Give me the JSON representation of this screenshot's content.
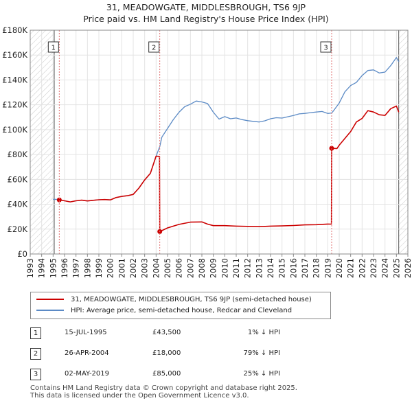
{
  "chart_data": {
    "type": "line",
    "title": "31, MEADOWGATE, MIDDLESBROUGH, TS6 9JP",
    "subtitle": "Price paid vs. HM Land Registry's House Price Index (HPI)",
    "x_ticks": [
      "1993",
      "1994",
      "1995",
      "1996",
      "1997",
      "1998",
      "1999",
      "2000",
      "2001",
      "2002",
      "2003",
      "2004",
      "2005",
      "2006",
      "2007",
      "2008",
      "2009",
      "2010",
      "2011",
      "2012",
      "2013",
      "2014",
      "2015",
      "2016",
      "2017",
      "2018",
      "2019",
      "2020",
      "2021",
      "2022",
      "2023",
      "2024",
      "2025",
      "2026"
    ],
    "y_ticks": [
      "£0",
      "£20K",
      "£40K",
      "£60K",
      "£80K",
      "£100K",
      "£120K",
      "£140K",
      "£160K",
      "£180K"
    ],
    "xlim": [
      1993,
      2026
    ],
    "ylim": [
      0,
      180000
    ],
    "grid": true,
    "series": [
      {
        "name": "31, MEADOWGATE, MIDDLESBROUGH, TS6 9JP (semi-detached house)",
        "color": "#cc0000",
        "x": [
          1995.54,
          1996.0,
          1996.5,
          1997.0,
          1997.5,
          1998.0,
          1998.5,
          1999.0,
          1999.5,
          2000.0,
          2000.5,
          2001.0,
          2001.5,
          2002.0,
          2002.5,
          2003.0,
          2003.5,
          2004.0,
          2004.3,
          2004.32,
          2005.0,
          2006.0,
          2007.0,
          2008.0,
          2008.5,
          2009.0,
          2010.0,
          2011.0,
          2012.0,
          2013.0,
          2014.0,
          2015.0,
          2016.0,
          2017.0,
          2018.0,
          2019.0,
          2019.32,
          2019.34,
          2019.8,
          2020.0,
          2020.5,
          2021.0,
          2021.5,
          2022.0,
          2022.5,
          2023.0,
          2023.5,
          2024.0,
          2024.5,
          2025.0,
          2025.2
        ],
        "values": [
          43500,
          42800,
          41900,
          42800,
          43300,
          42700,
          43200,
          43600,
          43800,
          43500,
          45400,
          46300,
          46900,
          47900,
          53000,
          59600,
          64900,
          78700,
          78500,
          18000,
          21000,
          23800,
          25600,
          25800,
          24000,
          22800,
          22800,
          22400,
          22200,
          22000,
          22400,
          22600,
          22900,
          23400,
          23600,
          24100,
          24000,
          85000,
          84800,
          87500,
          93000,
          98500,
          106200,
          109000,
          115300,
          114200,
          112000,
          111500,
          116900,
          119000,
          114100
        ]
      },
      {
        "name": "HPI: Average price, semi-detached house, Redcar and Cleveland",
        "color": "#5b8ac5",
        "x": [
          1995.0,
          1995.54,
          1996.0,
          1996.5,
          1997.0,
          1997.5,
          1998.0,
          1998.5,
          1999.0,
          1999.5,
          2000.0,
          2000.5,
          2001.0,
          2001.5,
          2002.0,
          2002.5,
          2003.0,
          2003.5,
          2004.0,
          2004.32,
          2004.5,
          2005.0,
          2005.5,
          2006.0,
          2006.5,
          2007.0,
          2007.5,
          2008.0,
          2008.5,
          2009.0,
          2009.5,
          2010.0,
          2010.5,
          2011.0,
          2011.5,
          2012.0,
          2012.5,
          2013.0,
          2013.5,
          2014.0,
          2014.5,
          2015.0,
          2015.5,
          2016.0,
          2016.5,
          2017.0,
          2017.5,
          2018.0,
          2018.5,
          2019.0,
          2019.34,
          2019.5,
          2020.0,
          2020.5,
          2021.0,
          2021.5,
          2022.0,
          2022.5,
          2023.0,
          2023.5,
          2024.0,
          2024.5,
          2025.0,
          2025.2
        ],
        "values": [
          44000,
          43800,
          42800,
          41900,
          42800,
          43300,
          42700,
          43200,
          43600,
          43800,
          43500,
          45400,
          46300,
          46900,
          47900,
          53000,
          59600,
          64900,
          78700,
          86400,
          94000,
          101000,
          108000,
          114000,
          118500,
          120500,
          123000,
          122300,
          121000,
          114000,
          108500,
          110500,
          108800,
          109400,
          108100,
          107200,
          106700,
          106200,
          107100,
          108800,
          109600,
          109300,
          110400,
          111400,
          112700,
          113100,
          113700,
          114200,
          114600,
          113000,
          113400,
          115200,
          121400,
          130500,
          135500,
          138000,
          143500,
          147600,
          148100,
          145600,
          146300,
          151500,
          158000,
          154700
        ]
      }
    ],
    "annotations": [
      {
        "label": "1",
        "x": 1995.54
      },
      {
        "label": "2",
        "x": 2004.32
      },
      {
        "label": "3",
        "x": 2019.34
      }
    ],
    "sale_points": [
      {
        "x": 1995.54,
        "value": 43500
      },
      {
        "x": 2004.32,
        "value": 18000
      },
      {
        "x": 2019.34,
        "value": 85000
      }
    ],
    "hatched_ranges": [
      [
        1993,
        1995.1
      ],
      [
        2025.2,
        2026
      ]
    ]
  },
  "legend": {
    "items": [
      {
        "label": "31, MEADOWGATE, MIDDLESBROUGH, TS6 9JP (semi-detached house)",
        "color": "#cc0000"
      },
      {
        "label": "HPI: Average price, semi-detached house, Redcar and Cleveland",
        "color": "#5b8ac5"
      }
    ]
  },
  "transactions": [
    {
      "num": "1",
      "date": "15-JUL-1995",
      "price": "£43,500",
      "delta": "1% ↓ HPI"
    },
    {
      "num": "2",
      "date": "26-APR-2004",
      "price": "£18,000",
      "delta": "79% ↓ HPI"
    },
    {
      "num": "3",
      "date": "02-MAY-2019",
      "price": "£85,000",
      "delta": "25% ↓ HPI"
    }
  ],
  "footer": {
    "line1": "Contains HM Land Registry data © Crown copyright and database right 2025.",
    "line2": "This data is licensed under the Open Government Licence v3.0."
  }
}
